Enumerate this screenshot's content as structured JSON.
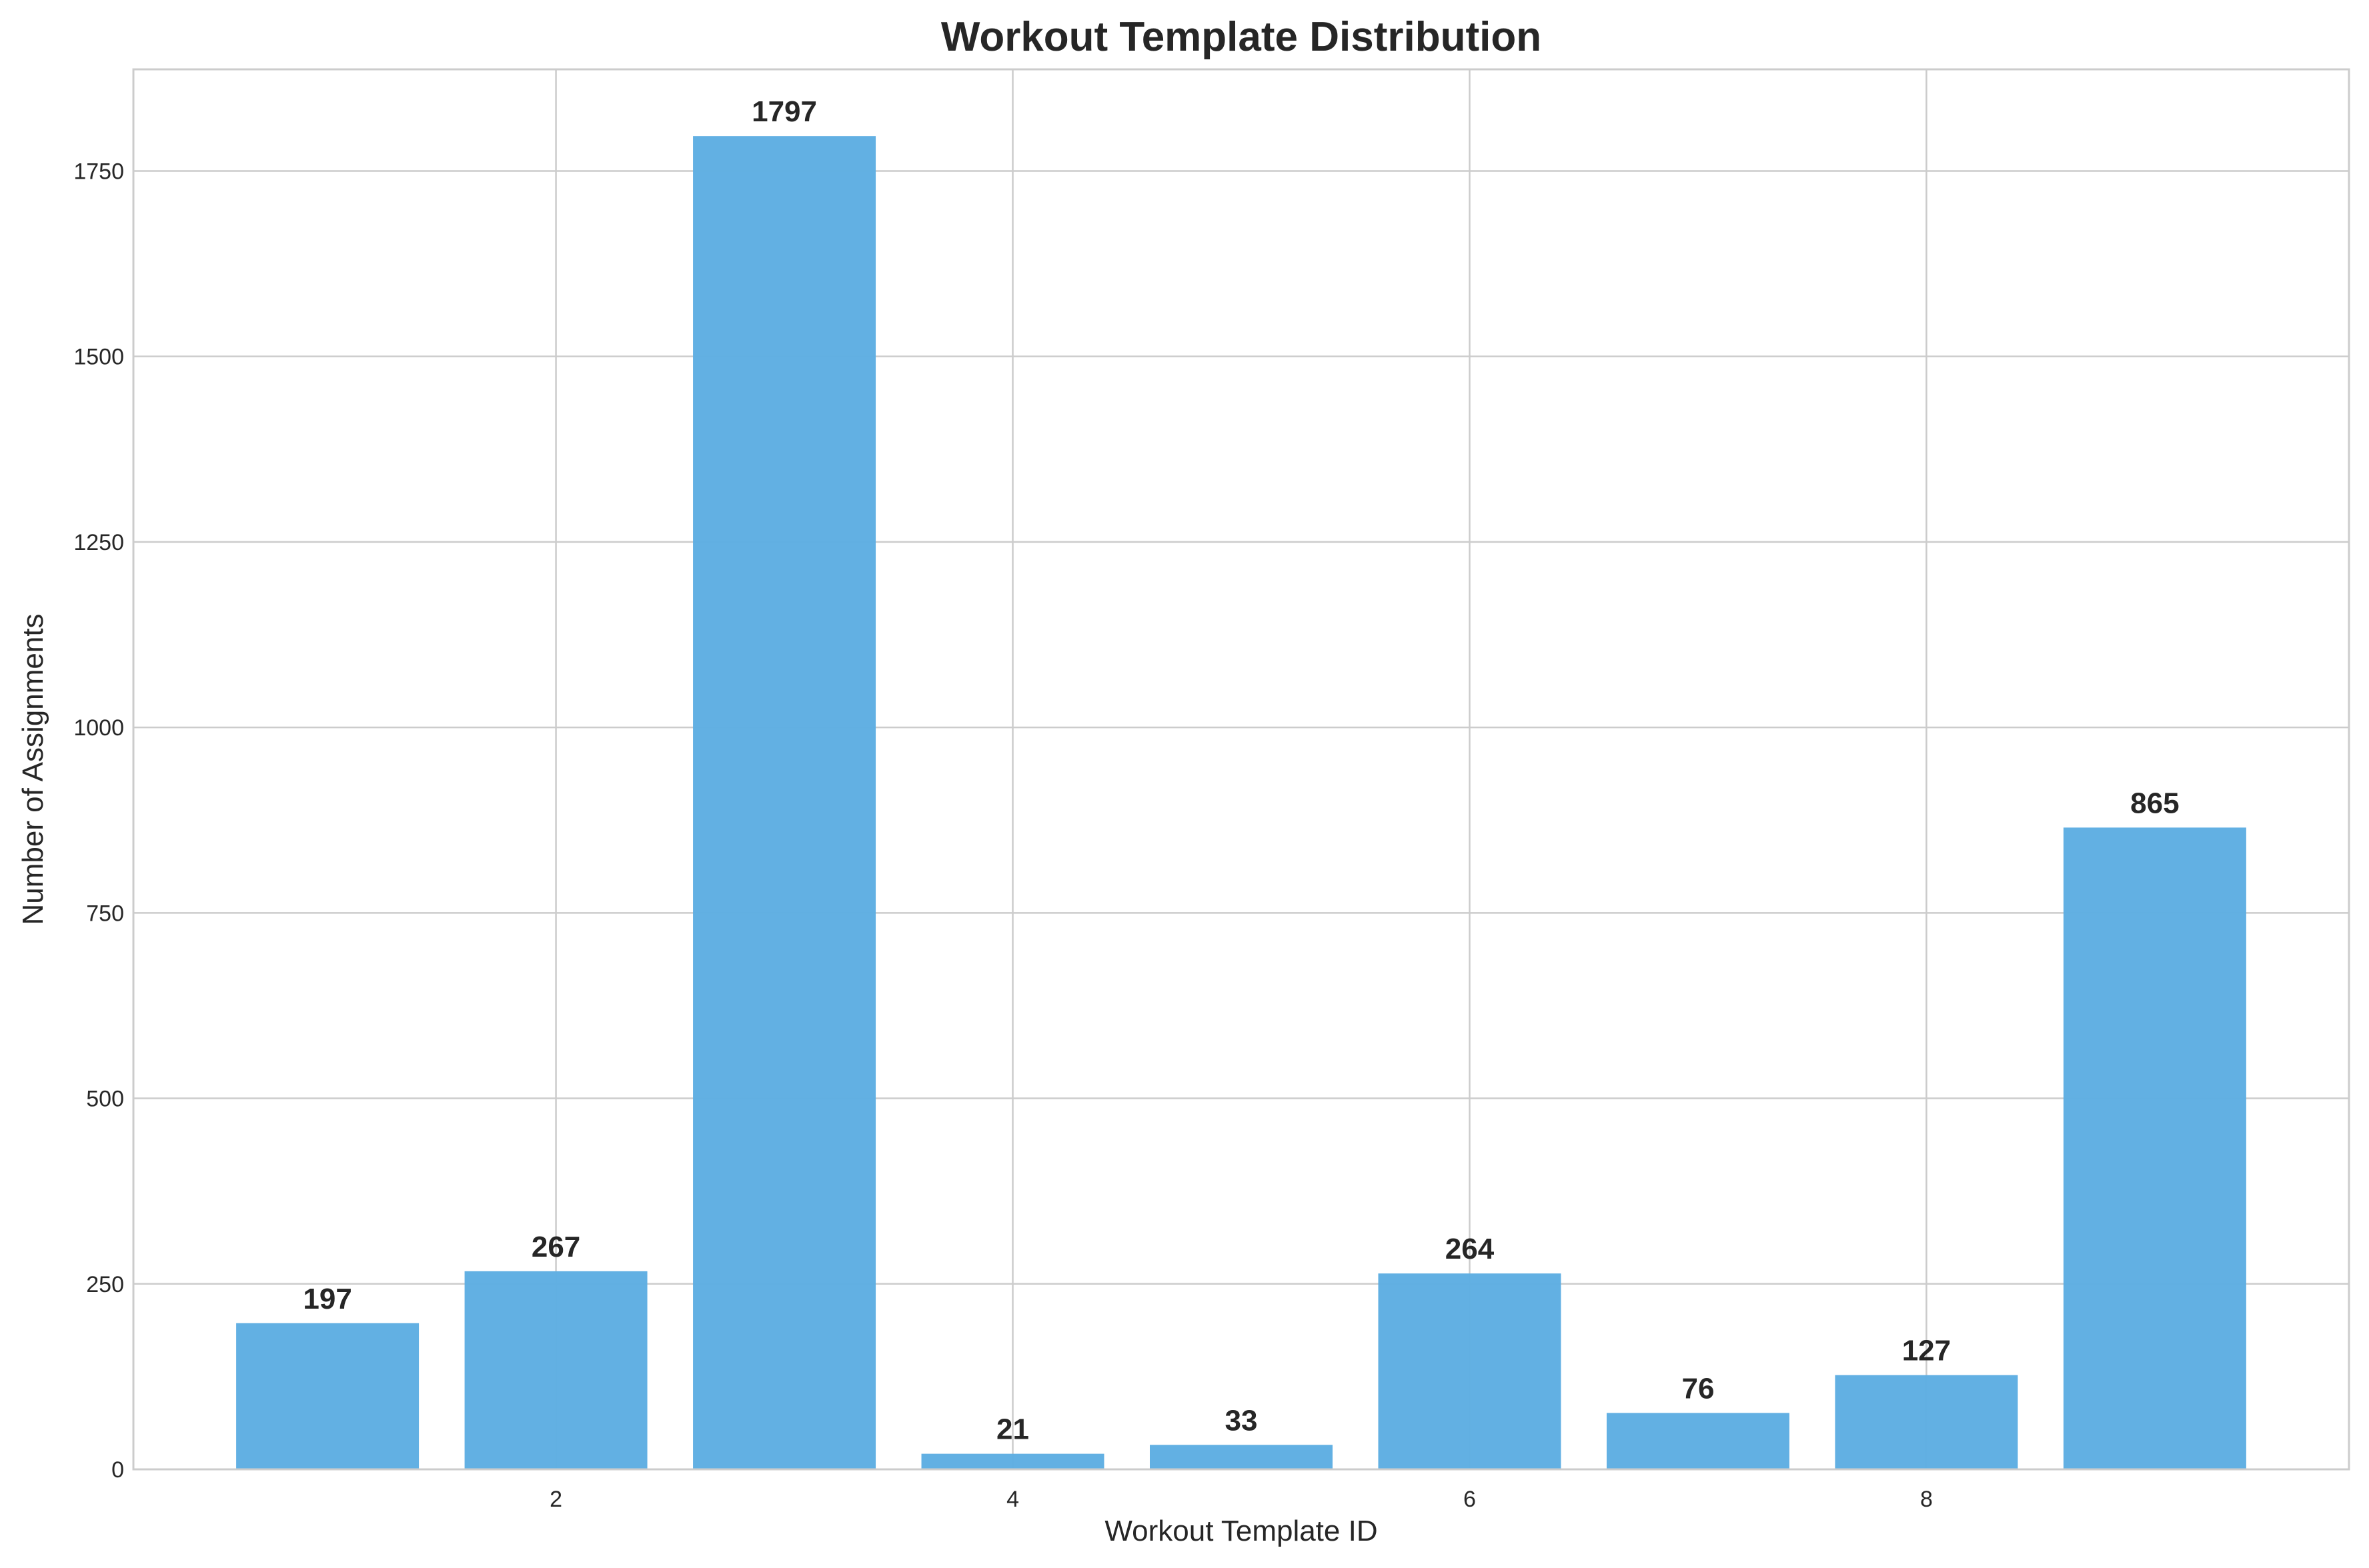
{
  "chart_data": {
    "type": "bar",
    "title": "Workout Template Distribution",
    "xlabel": "Workout Template ID",
    "ylabel": "Number of Assignments",
    "x": [
      1,
      2,
      3,
      4,
      5,
      6,
      7,
      8,
      9
    ],
    "values": [
      197,
      267,
      1797,
      21,
      33,
      264,
      76,
      127,
      865
    ],
    "data_labels": [
      "197",
      "267",
      "1797",
      "21",
      "33",
      "264",
      "76",
      "127",
      "865"
    ],
    "xlim": [
      0.15,
      9.85
    ],
    "ylim": [
      0,
      1887
    ],
    "xticks": [
      2,
      4,
      6,
      8
    ],
    "xtick_labels": [
      "2",
      "4",
      "6",
      "8"
    ],
    "yticks": [
      0,
      250,
      500,
      750,
      1000,
      1250,
      1500,
      1750
    ],
    "ytick_labels": [
      "0",
      "250",
      "500",
      "750",
      "1000",
      "1250",
      "1500",
      "1750"
    ],
    "grid": true,
    "bar_color": "#5DADE2"
  }
}
